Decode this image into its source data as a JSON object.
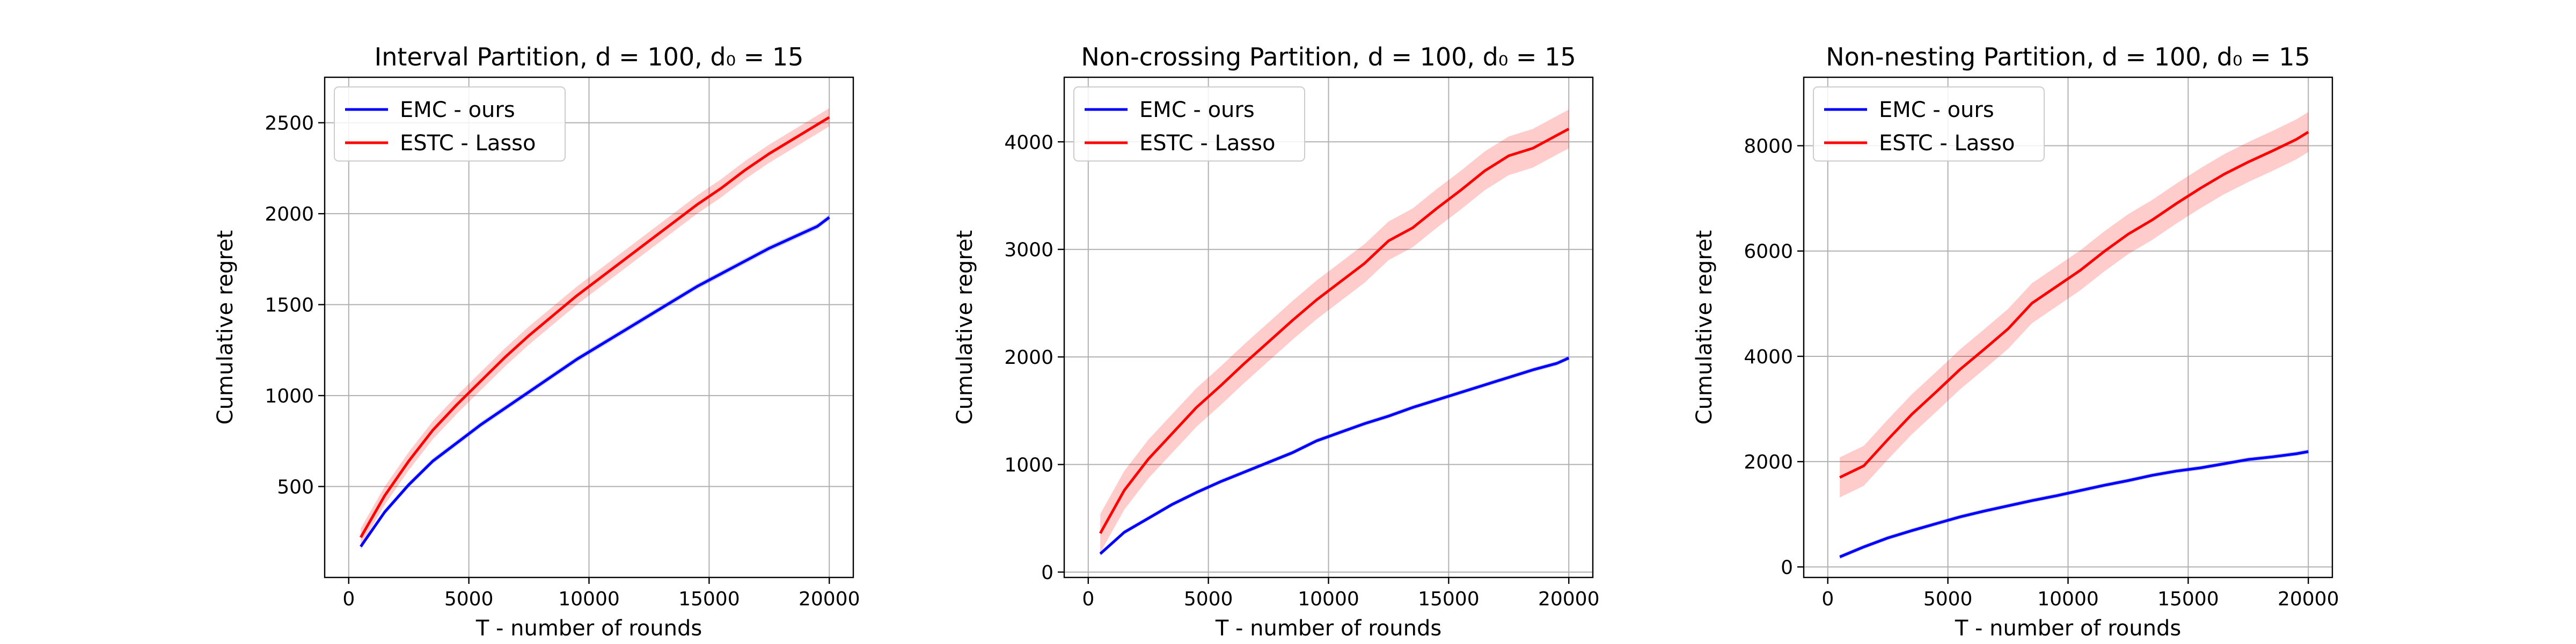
{
  "chart_data": [
    {
      "type": "line",
      "title": "Interval Partition, d = 100,  d₀ = 15",
      "xlabel": "T - number of rounds",
      "ylabel": "Cumulative regret",
      "xlim": [
        -1000,
        21000
      ],
      "ylim": [
        0,
        2750
      ],
      "xticks": [
        0,
        5000,
        10000,
        15000,
        20000
      ],
      "xtick_labels": [
        "0",
        "5000",
        "10000",
        "15000",
        "20000"
      ],
      "yticks": [
        500,
        1000,
        1500,
        2000,
        2500
      ],
      "ytick_labels": [
        "500",
        "1000",
        "1500",
        "2000",
        "2500"
      ],
      "grid": true,
      "legend_position": "upper-left",
      "x": [
        500,
        1500,
        2500,
        3500,
        4500,
        5500,
        6500,
        7500,
        8500,
        9500,
        10500,
        11500,
        12500,
        13500,
        14500,
        15500,
        16500,
        17500,
        18500,
        19500,
        20000
      ],
      "series": [
        {
          "name": "EMC - ours",
          "color": "#0000ff",
          "band": 15,
          "values": [
            170,
            360,
            510,
            640,
            740,
            840,
            930,
            1020,
            1110,
            1200,
            1280,
            1360,
            1440,
            1520,
            1600,
            1670,
            1740,
            1810,
            1870,
            1930,
            1980
          ]
        },
        {
          "name": "ESTC - Lasso",
          "color": "#ff0000",
          "band": 50,
          "values": [
            220,
            450,
            640,
            810,
            950,
            1080,
            1210,
            1330,
            1440,
            1550,
            1650,
            1750,
            1850,
            1950,
            2050,
            2140,
            2240,
            2330,
            2410,
            2490,
            2530
          ]
        }
      ]
    },
    {
      "type": "line",
      "title": "Non-crossing Partition, d = 100,  d₀ = 15",
      "xlabel": "T - number of rounds",
      "ylabel": "Cumulative regret",
      "xlim": [
        -1000,
        21000
      ],
      "ylim": [
        -50,
        4600
      ],
      "xticks": [
        0,
        5000,
        10000,
        15000,
        20000
      ],
      "xtick_labels": [
        "0",
        "5000",
        "10000",
        "15000",
        "20000"
      ],
      "yticks": [
        0,
        1000,
        2000,
        3000,
        4000
      ],
      "ytick_labels": [
        "0",
        "1000",
        "2000",
        "3000",
        "4000"
      ],
      "grid": true,
      "legend_position": "upper-left",
      "x": [
        500,
        1500,
        2500,
        3500,
        4500,
        5500,
        6500,
        7500,
        8500,
        9500,
        10500,
        11500,
        12500,
        13500,
        14500,
        15500,
        16500,
        17500,
        18500,
        19500,
        20000
      ],
      "series": [
        {
          "name": "EMC - ours",
          "color": "#0000ff",
          "band": 20,
          "values": [
            170,
            370,
            500,
            630,
            740,
            840,
            930,
            1020,
            1110,
            1220,
            1300,
            1380,
            1450,
            1530,
            1600,
            1670,
            1740,
            1810,
            1880,
            1940,
            1990
          ]
        },
        {
          "name": "ESTC - Lasso",
          "color": "#ff0000",
          "band": 180,
          "values": [
            360,
            760,
            1050,
            1290,
            1530,
            1730,
            1940,
            2140,
            2340,
            2530,
            2700,
            2870,
            3080,
            3200,
            3380,
            3550,
            3730,
            3870,
            3940,
            4060,
            4120
          ]
        }
      ]
    },
    {
      "type": "line",
      "title": "Non-nesting Partition, d = 100,  d₀ = 15",
      "xlabel": "T - number of rounds",
      "ylabel": "Cumulative regret",
      "xlim": [
        -1000,
        21000
      ],
      "ylim": [
        -200,
        9300
      ],
      "xticks": [
        0,
        5000,
        10000,
        15000,
        20000
      ],
      "xtick_labels": [
        "0",
        "5000",
        "10000",
        "15000",
        "20000"
      ],
      "yticks": [
        0,
        2000,
        4000,
        6000,
        8000
      ],
      "ytick_labels": [
        "0",
        "2000",
        "4000",
        "6000",
        "8000"
      ],
      "grid": true,
      "legend_position": "upper-left",
      "x": [
        500,
        1500,
        2500,
        3500,
        4500,
        5500,
        6500,
        7500,
        8500,
        9500,
        10500,
        11500,
        12500,
        13500,
        14500,
        15500,
        16500,
        17500,
        18500,
        19500,
        20000
      ],
      "series": [
        {
          "name": "EMC - ours",
          "color": "#0000ff",
          "band": 40,
          "values": [
            190,
            380,
            550,
            690,
            820,
            950,
            1060,
            1160,
            1260,
            1350,
            1450,
            1550,
            1640,
            1740,
            1820,
            1880,
            1960,
            2040,
            2090,
            2150,
            2190
          ]
        },
        {
          "name": "ESTC - Lasso",
          "color": "#ff0000",
          "band": 380,
          "values": [
            1700,
            1920,
            2420,
            2900,
            3320,
            3750,
            4130,
            4520,
            5010,
            5320,
            5630,
            5990,
            6320,
            6590,
            6900,
            7190,
            7460,
            7690,
            7900,
            8120,
            8260
          ]
        }
      ]
    }
  ]
}
